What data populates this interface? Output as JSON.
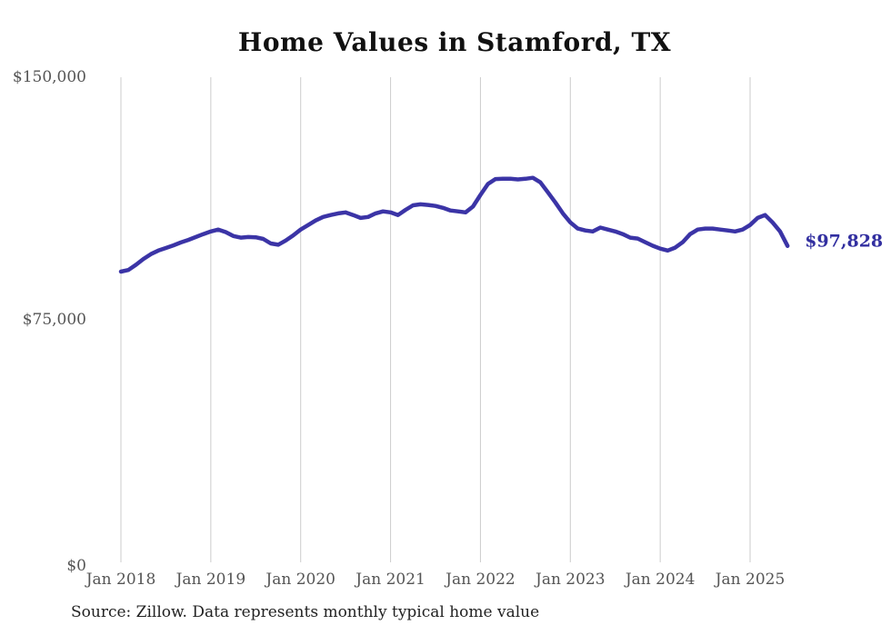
{
  "title": "Home Values in Stamford, TX",
  "source_note": "Source: Zillow. Data represents monthly typical home value",
  "end_label": "$97,828",
  "colors": {
    "line": "#3b34a6",
    "end_label": "#322fa0",
    "gridline": "#cccccc",
    "axis_text": "#555555",
    "source_text": "#222222",
    "title_text": "#111111",
    "background": "#ffffff"
  },
  "chart_data": {
    "type": "line",
    "title": "Home Values in Stamford, TX",
    "xlabel": "",
    "ylabel": "",
    "ylim": [
      0,
      150000
    ],
    "grid": "vertical-only",
    "legend": "none",
    "y_ticks": [
      {
        "label": "$0",
        "value": 0
      },
      {
        "label": "$75,000",
        "value": 75000
      },
      {
        "label": "$150,000",
        "value": 150000
      }
    ],
    "x_ticks": [
      "Jan 2018",
      "Jan 2019",
      "Jan 2020",
      "Jan 2021",
      "Jan 2022",
      "Jan 2023",
      "Jan 2024",
      "Jan 2025"
    ],
    "series_name": "Typical home value (monthly)",
    "start_month": "Jan 2018",
    "end_month": "Jun 2025",
    "frequency": "monthly",
    "last_value_annotation": "$97,828",
    "values": [
      89900,
      90400,
      92000,
      93800,
      95300,
      96400,
      97200,
      98000,
      98900,
      99700,
      100600,
      101500,
      102300,
      102900,
      102100,
      100900,
      100400,
      100600,
      100500,
      100000,
      98600,
      98200,
      99500,
      101100,
      102900,
      104300,
      105700,
      106800,
      107400,
      107900,
      108200,
      107400,
      106500,
      106800,
      107900,
      108500,
      108200,
      107400,
      109000,
      110400,
      110700,
      110500,
      110200,
      109600,
      108800,
      108500,
      108200,
      110000,
      113600,
      117000,
      118500,
      118600,
      118600,
      118400,
      118600,
      118900,
      117500,
      114400,
      111300,
      107900,
      105100,
      103200,
      102600,
      102300,
      103500,
      102900,
      102300,
      101500,
      100400,
      100100,
      99000,
      97900,
      97000,
      96400,
      97300,
      99000,
      101500,
      102900,
      103200,
      103200,
      102900,
      102600,
      102300,
      102900,
      104300,
      106500,
      107400,
      105100,
      102300,
      97828
    ]
  }
}
